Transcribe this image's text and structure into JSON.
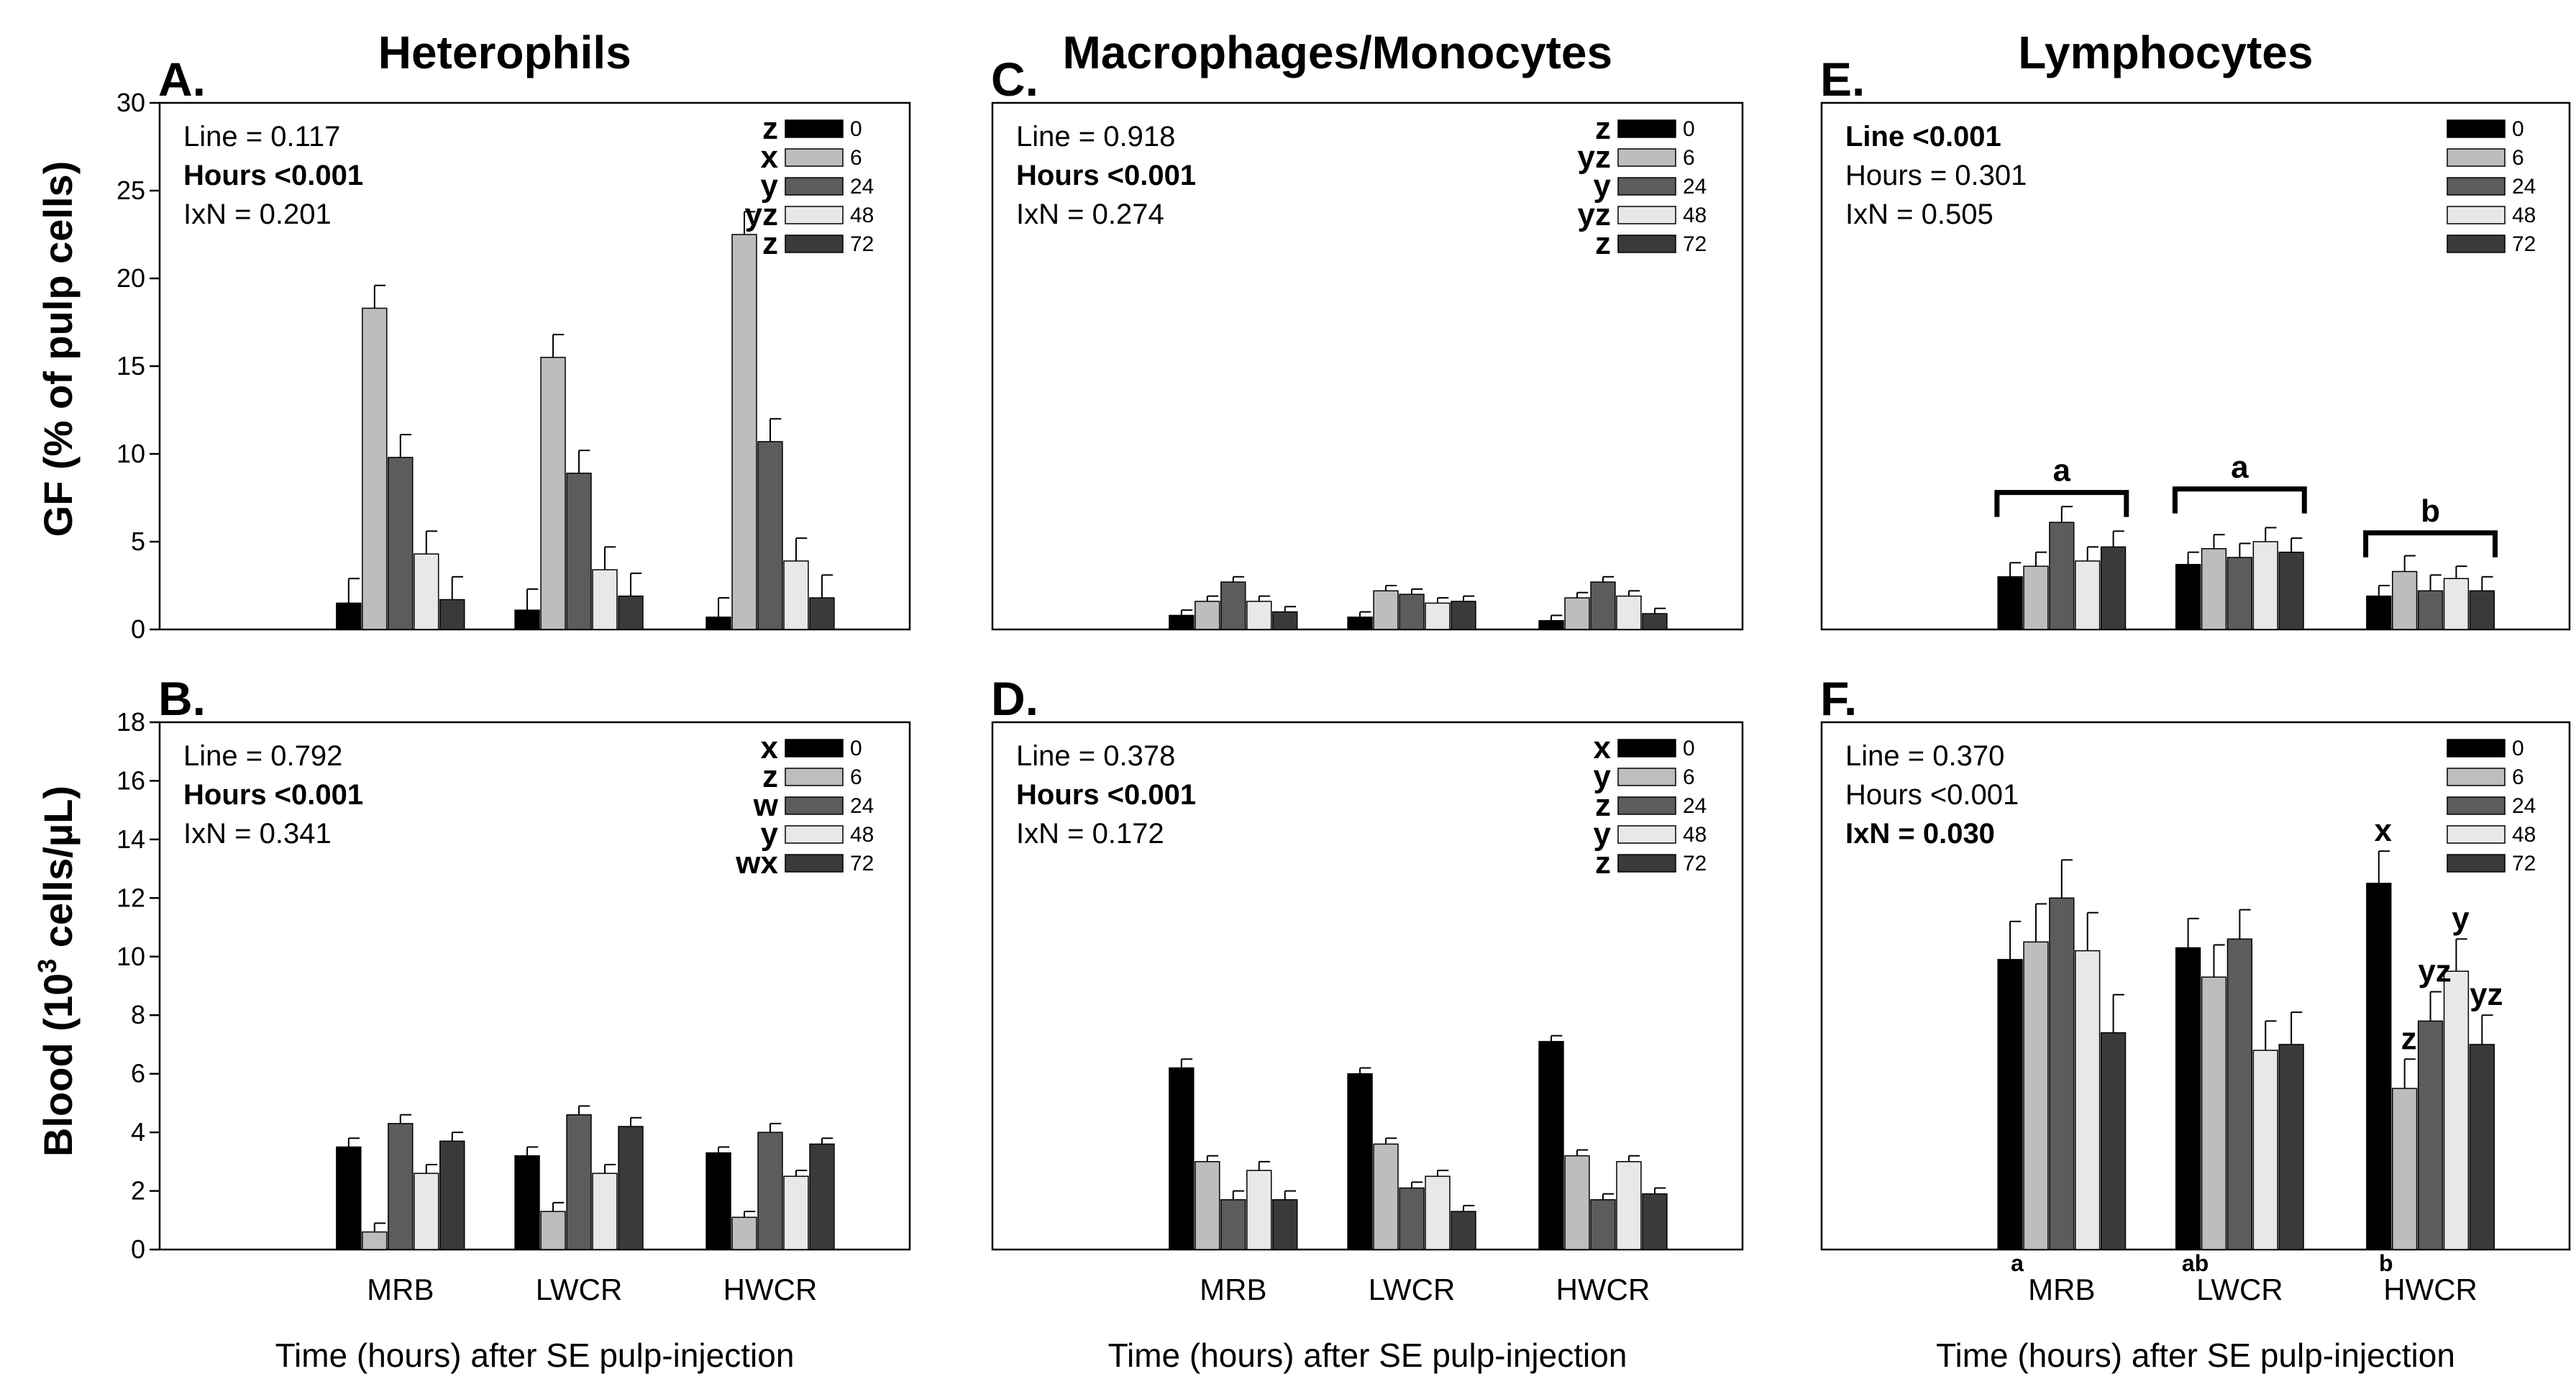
{
  "colors": [
    "#000000",
    "#bdbdbd",
    "#5c5c5c",
    "#e8e8e8",
    "#3a3a3a"
  ],
  "y_axis_labels": {
    "top_prefix": "GF (% of pulp cells)",
    "bottom_prefix": "Blood (10",
    "bottom_sup": "3",
    "bottom_suffix": " cells/µL)"
  },
  "x_axis_label": "Time (hours) after SE pulp-injection",
  "chart_data": [
    {
      "id": "A",
      "type": "bar",
      "letter": "A.",
      "title": "Heterophils",
      "categories": [
        "MRB",
        "LWCR",
        "HWCR"
      ],
      "ylim": [
        0,
        30
      ],
      "yticks": [
        "0",
        "5",
        "10",
        "15",
        "20",
        "25",
        "30"
      ],
      "series": [
        {
          "name": "0",
          "values": [
            1.5,
            1.1,
            0.7
          ],
          "err": [
            1.4,
            1.2,
            1.1
          ]
        },
        {
          "name": "6",
          "values": [
            18.3,
            15.5,
            22.5
          ],
          "err": [
            1.3,
            1.3,
            1.3
          ]
        },
        {
          "name": "24",
          "values": [
            9.8,
            8.9,
            10.7
          ],
          "err": [
            1.3,
            1.3,
            1.3
          ]
        },
        {
          "name": "48",
          "values": [
            4.3,
            3.4,
            3.9
          ],
          "err": [
            1.3,
            1.3,
            1.3
          ]
        },
        {
          "name": "72",
          "values": [
            1.7,
            1.9,
            1.8
          ],
          "err": [
            1.3,
            1.3,
            1.3
          ]
        }
      ],
      "legend_letters": [
        "z",
        "x",
        "y",
        "yz",
        "z"
      ],
      "stats": [
        {
          "text": "Line = 0.117",
          "bold": false
        },
        {
          "text": "Hours <0.001",
          "bold": true
        },
        {
          "text": "IxN = 0.201",
          "bold": false
        }
      ]
    },
    {
      "id": "C",
      "type": "bar",
      "letter": "C.",
      "title": "Macrophages/Monocytes",
      "categories": [
        "MRB",
        "LWCR",
        "HWCR"
      ],
      "ylim": [
        0,
        30
      ],
      "yticks": [
        "0",
        "5",
        "10",
        "15",
        "20",
        "25",
        "30"
      ],
      "series": [
        {
          "name": "0",
          "values": [
            0.8,
            0.7,
            0.5
          ],
          "err": [
            0.3,
            0.3,
            0.3
          ]
        },
        {
          "name": "6",
          "values": [
            1.6,
            2.2,
            1.8
          ],
          "err": [
            0.3,
            0.3,
            0.3
          ]
        },
        {
          "name": "24",
          "values": [
            2.7,
            2.0,
            2.7
          ],
          "err": [
            0.3,
            0.3,
            0.3
          ]
        },
        {
          "name": "48",
          "values": [
            1.6,
            1.5,
            1.9
          ],
          "err": [
            0.3,
            0.3,
            0.3
          ]
        },
        {
          "name": "72",
          "values": [
            1.0,
            1.6,
            0.9
          ],
          "err": [
            0.3,
            0.3,
            0.3
          ]
        }
      ],
      "legend_letters": [
        "z",
        "yz",
        "y",
        "yz",
        "z"
      ],
      "stats": [
        {
          "text": "Line = 0.918",
          "bold": false
        },
        {
          "text": "Hours <0.001",
          "bold": true
        },
        {
          "text": "IxN = 0.274",
          "bold": false
        }
      ]
    },
    {
      "id": "E",
      "type": "bar",
      "letter": "E.",
      "title": "Lymphocytes",
      "categories": [
        "MRB",
        "LWCR",
        "HWCR"
      ],
      "ylim": [
        0,
        30
      ],
      "yticks": [
        "0",
        "5",
        "10",
        "15",
        "20",
        "25",
        "30"
      ],
      "series": [
        {
          "name": "0",
          "values": [
            3.0,
            3.7,
            1.9
          ],
          "err": [
            0.8,
            0.7,
            0.6
          ]
        },
        {
          "name": "6",
          "values": [
            3.6,
            4.6,
            3.3
          ],
          "err": [
            0.8,
            0.8,
            0.9
          ]
        },
        {
          "name": "24",
          "values": [
            6.1,
            4.1,
            2.2
          ],
          "err": [
            0.9,
            0.8,
            0.9
          ]
        },
        {
          "name": "48",
          "values": [
            3.9,
            5.0,
            2.9
          ],
          "err": [
            0.8,
            0.8,
            0.7
          ]
        },
        {
          "name": "72",
          "values": [
            4.7,
            4.4,
            2.2
          ],
          "err": [
            0.9,
            0.8,
            0.8
          ]
        }
      ],
      "legend_letters": [],
      "group_brackets": [
        "a",
        "a",
        "b"
      ],
      "stats": [
        {
          "text": "Line <0.001",
          "bold": true
        },
        {
          "text": "Hours = 0.301",
          "bold": false
        },
        {
          "text": "IxN = 0.505",
          "bold": false
        }
      ]
    },
    {
      "id": "B",
      "type": "bar",
      "letter": "B.",
      "title": "",
      "categories": [
        "MRB",
        "LWCR",
        "HWCR"
      ],
      "ylim": [
        0,
        18
      ],
      "yticks": [
        "0",
        "2",
        "4",
        "6",
        "8",
        "10",
        "12",
        "14",
        "16",
        "18"
      ],
      "series": [
        {
          "name": "0",
          "values": [
            3.5,
            3.2,
            3.3
          ],
          "err": [
            0.3,
            0.3,
            0.2
          ]
        },
        {
          "name": "6",
          "values": [
            0.6,
            1.3,
            1.1
          ],
          "err": [
            0.3,
            0.3,
            0.2
          ]
        },
        {
          "name": "24",
          "values": [
            4.3,
            4.6,
            4.0
          ],
          "err": [
            0.3,
            0.3,
            0.3
          ]
        },
        {
          "name": "48",
          "values": [
            2.6,
            2.6,
            2.5
          ],
          "err": [
            0.3,
            0.3,
            0.2
          ]
        },
        {
          "name": "72",
          "values": [
            3.7,
            4.2,
            3.6
          ],
          "err": [
            0.3,
            0.3,
            0.2
          ]
        }
      ],
      "legend_letters": [
        "x",
        "z",
        "w",
        "y",
        "wx"
      ],
      "stats": [
        {
          "text": "Line = 0.792",
          "bold": false
        },
        {
          "text": "Hours <0.001",
          "bold": true
        },
        {
          "text": "IxN = 0.341",
          "bold": false
        }
      ]
    },
    {
      "id": "D",
      "type": "bar",
      "letter": "D.",
      "title": "",
      "categories": [
        "MRB",
        "LWCR",
        "HWCR"
      ],
      "ylim": [
        0,
        18
      ],
      "yticks": [
        "0",
        "2",
        "4",
        "6",
        "8",
        "10",
        "12",
        "14",
        "16",
        "18"
      ],
      "series": [
        {
          "name": "0",
          "values": [
            6.2,
            6.0,
            7.1
          ],
          "err": [
            0.3,
            0.2,
            0.2
          ]
        },
        {
          "name": "6",
          "values": [
            3.0,
            3.6,
            3.2
          ],
          "err": [
            0.2,
            0.2,
            0.2
          ]
        },
        {
          "name": "24",
          "values": [
            1.7,
            2.1,
            1.7
          ],
          "err": [
            0.3,
            0.2,
            0.2
          ]
        },
        {
          "name": "48",
          "values": [
            2.7,
            2.5,
            3.0
          ],
          "err": [
            0.3,
            0.2,
            0.2
          ]
        },
        {
          "name": "72",
          "values": [
            1.7,
            1.3,
            1.9
          ],
          "err": [
            0.3,
            0.2,
            0.2
          ]
        }
      ],
      "legend_letters": [
        "x",
        "y",
        "z",
        "y",
        "z"
      ],
      "stats": [
        {
          "text": "Line = 0.378",
          "bold": false
        },
        {
          "text": "Hours <0.001",
          "bold": true
        },
        {
          "text": "IxN = 0.172",
          "bold": false
        }
      ]
    },
    {
      "id": "F",
      "type": "bar",
      "letter": "F.",
      "title": "",
      "categories": [
        "MRB",
        "LWCR",
        "HWCR"
      ],
      "ylim": [
        0,
        18
      ],
      "yticks": [
        "0",
        "2",
        "4",
        "6",
        "8",
        "10",
        "12",
        "14",
        "16",
        "18"
      ],
      "series": [
        {
          "name": "0",
          "values": [
            9.9,
            10.3,
            12.5
          ],
          "err": [
            1.3,
            1.0,
            1.1
          ]
        },
        {
          "name": "6",
          "values": [
            10.5,
            9.3,
            5.5
          ],
          "err": [
            1.3,
            1.1,
            1.0
          ]
        },
        {
          "name": "24",
          "values": [
            12.0,
            10.6,
            7.8
          ],
          "err": [
            1.3,
            1.0,
            1.0
          ]
        },
        {
          "name": "48",
          "values": [
            10.2,
            6.8,
            9.5
          ],
          "err": [
            1.3,
            1.0,
            1.1
          ]
        },
        {
          "name": "72",
          "values": [
            7.4,
            7.0,
            7.0
          ],
          "err": [
            1.3,
            1.1,
            1.0
          ]
        }
      ],
      "legend_letters": [],
      "category_letters": [
        "a",
        "ab",
        "b"
      ],
      "bar_annotations": [
        {
          "group": 2,
          "series": 0,
          "text": "x"
        },
        {
          "group": 2,
          "series": 1,
          "text": "z"
        },
        {
          "group": 2,
          "series": 2,
          "text": "yz"
        },
        {
          "group": 2,
          "series": 3,
          "text": "y"
        },
        {
          "group": 2,
          "series": 4,
          "text": "yz"
        }
      ],
      "stats": [
        {
          "text": "Line = 0.370",
          "bold": false
        },
        {
          "text": "Hours <0.001",
          "bold": false
        },
        {
          "text": "IxN = 0.030",
          "bold": true
        }
      ]
    }
  ]
}
